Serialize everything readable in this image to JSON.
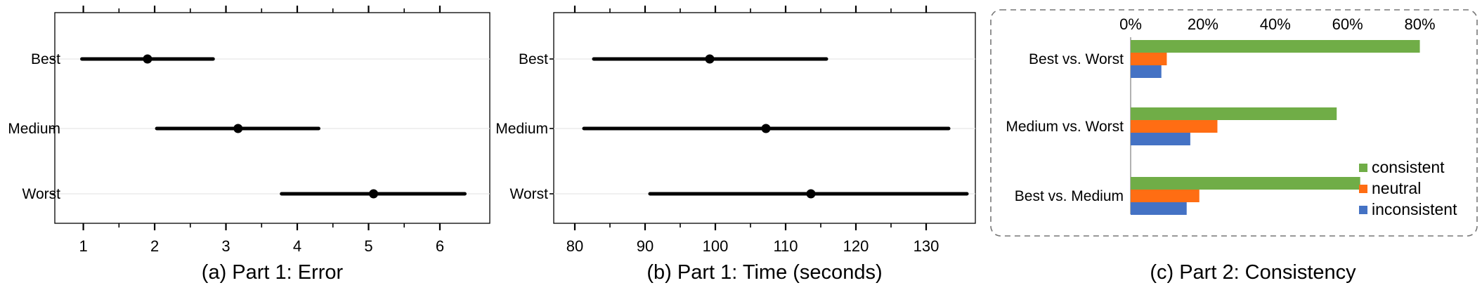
{
  "chart_data": [
    {
      "type": "errorbar",
      "caption": "(a) Part 1:  Error",
      "categories": [
        "Best",
        "Medium",
        "Worst"
      ],
      "xlim": [
        0.6,
        6.7
      ],
      "x_ticks": [
        1,
        2,
        3,
        4,
        5,
        6
      ],
      "x_tick_labels": [
        "1",
        "2",
        "3",
        "4",
        "5",
        "6"
      ],
      "points": [
        {
          "category": "Best",
          "mean": 1.9,
          "low": 0.98,
          "high": 2.82
        },
        {
          "category": "Medium",
          "mean": 3.17,
          "low": 2.03,
          "high": 4.3
        },
        {
          "category": "Worst",
          "mean": 5.07,
          "low": 3.78,
          "high": 6.35
        }
      ],
      "grid": true
    },
    {
      "type": "errorbar",
      "caption": "(b) Part 1: Time (seconds)",
      "categories": [
        "Best",
        "Medium",
        "Worst"
      ],
      "xlim": [
        77,
        137
      ],
      "x_ticks": [
        80,
        90,
        100,
        110,
        120,
        130
      ],
      "x_tick_labels": [
        "80",
        "90",
        "100",
        "110",
        "120",
        "130"
      ],
      "points": [
        {
          "category": "Best",
          "mean": 99.2,
          "low": 82.7,
          "high": 115.8
        },
        {
          "category": "Medium",
          "mean": 107.2,
          "low": 81.3,
          "high": 133.2
        },
        {
          "category": "Worst",
          "mean": 113.6,
          "low": 90.7,
          "high": 135.8
        }
      ],
      "grid": true
    },
    {
      "type": "bar",
      "orientation": "horizontal",
      "caption": "(c) Part 2: Consistency",
      "categories": [
        "Best vs. Worst",
        "Medium vs. Worst",
        "Best vs. Medium"
      ],
      "xlim": [
        0,
        0.9
      ],
      "x_ticks": [
        0,
        0.2,
        0.4,
        0.6,
        0.8
      ],
      "x_tick_labels": [
        "0%",
        "20%",
        "40%",
        "60%",
        "80%"
      ],
      "series": [
        {
          "name": "consistent",
          "color": "#70ad47",
          "values": [
            0.8,
            0.57,
            0.635
          ]
        },
        {
          "name": "neutral",
          "color": "#ff6d13",
          "values": [
            0.1,
            0.24,
            0.19
          ]
        },
        {
          "name": "inconsistent",
          "color": "#4472c4",
          "values": [
            0.085,
            0.165,
            0.155
          ]
        }
      ],
      "legend": "bottom-right"
    }
  ]
}
